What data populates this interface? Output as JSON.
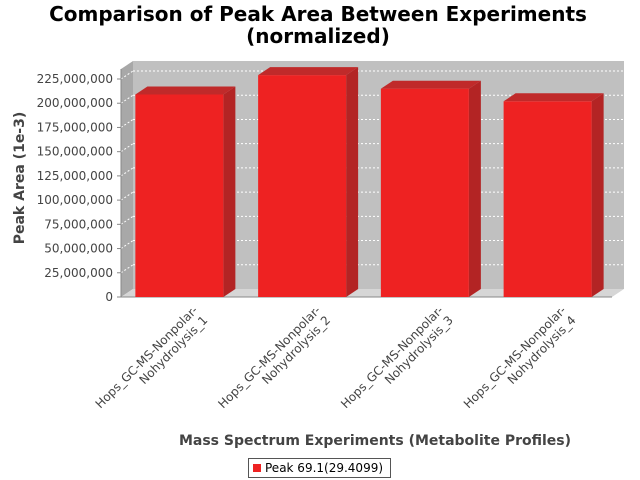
{
  "chart_data": {
    "type": "bar",
    "title_lines": [
      "Comparison of Peak Area Between Experiments",
      "(normalized)"
    ],
    "xlabel": "Mass Spectrum Experiments (Metabolite Profiles)",
    "ylabel": "Peak Area (1e-3)",
    "categories": [
      "Hops_GC-MS-Nonpolar-Nohydrolysis_1",
      "Hops_GC-MS-Nonpolar-Nohydrolysis_2",
      "Hops_GC-MS-Nonpolar-Nohydrolysis_3",
      "Hops_GC-MS-Nonpolar-Nohydrolysis_4"
    ],
    "category_lines": [
      [
        "Hops_GC-MS-Nonpolar-",
        "Nohydrolysis_1"
      ],
      [
        "Hops_GC-MS-Nonpolar-",
        "Nohydrolysis_2"
      ],
      [
        "Hops_GC-MS-Nonpolar-",
        "Nohydrolysis_3"
      ],
      [
        "Hops_GC-MS-Nonpolar-",
        "Nohydrolysis_4"
      ]
    ],
    "series": [
      {
        "name": "Peak 69.1(29.4099)",
        "values": [
          209000000,
          229000000,
          215000000,
          202000000
        ],
        "color": "#ee2222"
      }
    ],
    "ylim": [
      0,
      225000000
    ],
    "yticks": [
      0,
      25000000,
      50000000,
      75000000,
      100000000,
      125000000,
      150000000,
      175000000,
      200000000,
      225000000
    ],
    "ytick_labels": [
      "0",
      "25,000,000",
      "50,000,000",
      "75,000,000",
      "100,000,000",
      "125,000,000",
      "150,000,000",
      "175,000,000",
      "200,000,000",
      "225,000,000"
    ],
    "grid": true,
    "legend_position": "bottom",
    "plot_background": "#c0c0c0"
  }
}
